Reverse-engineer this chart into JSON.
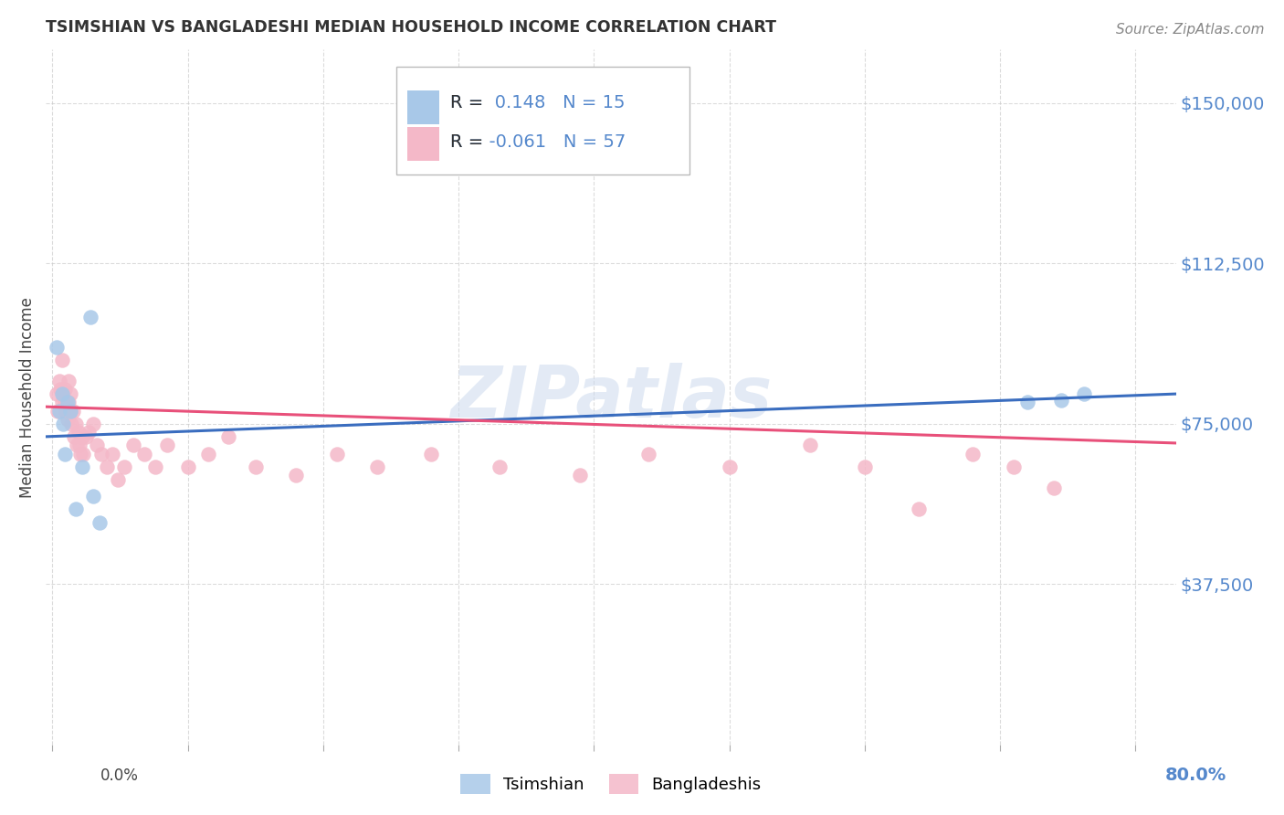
{
  "title": "TSIMSHIAN VS BANGLADESHI MEDIAN HOUSEHOLD INCOME CORRELATION CHART",
  "source": "Source: ZipAtlas.com",
  "ylabel": "Median Household Income",
  "yticks": [
    37500,
    75000,
    112500,
    150000
  ],
  "ytick_labels": [
    "$37,500",
    "$75,000",
    "$112,500",
    "$150,000"
  ],
  "ylim": [
    0,
    162500
  ],
  "xlim": [
    -0.005,
    0.83
  ],
  "watermark": "ZIPatlas",
  "blue_scatter_color": "#a8c8e8",
  "pink_scatter_color": "#f4b8c8",
  "blue_line_color": "#3a6dbf",
  "pink_line_color": "#e8507a",
  "ytick_color": "#5588cc",
  "title_color": "#333333",
  "source_color": "#888888",
  "background_color": "#ffffff",
  "grid_color": "#cccccc",
  "tsimshian_x": [
    0.003,
    0.005,
    0.007,
    0.008,
    0.009,
    0.011,
    0.013,
    0.017,
    0.022,
    0.028,
    0.03,
    0.035,
    0.72,
    0.745,
    0.762
  ],
  "tsimshian_y": [
    93000,
    78000,
    82000,
    75000,
    68000,
    80000,
    78000,
    55000,
    65000,
    100000,
    58000,
    52000,
    80000,
    80500,
    82000
  ],
  "bangladeshi_x": [
    0.003,
    0.004,
    0.005,
    0.006,
    0.007,
    0.007,
    0.008,
    0.009,
    0.009,
    0.01,
    0.01,
    0.011,
    0.012,
    0.012,
    0.013,
    0.013,
    0.014,
    0.015,
    0.016,
    0.017,
    0.018,
    0.019,
    0.02,
    0.021,
    0.022,
    0.023,
    0.025,
    0.027,
    0.03,
    0.033,
    0.036,
    0.04,
    0.044,
    0.048,
    0.053,
    0.06,
    0.068,
    0.076,
    0.085,
    0.1,
    0.115,
    0.13,
    0.15,
    0.18,
    0.21,
    0.24,
    0.28,
    0.33,
    0.39,
    0.44,
    0.5,
    0.56,
    0.6,
    0.64,
    0.68,
    0.71,
    0.74
  ],
  "bangladeshi_y": [
    82000,
    78000,
    85000,
    83000,
    80000,
    90000,
    82000,
    80000,
    83000,
    78000,
    80000,
    76000,
    80000,
    85000,
    78000,
    82000,
    75000,
    78000,
    72000,
    75000,
    70000,
    73000,
    70000,
    68000,
    72000,
    68000,
    72000,
    73000,
    75000,
    70000,
    68000,
    65000,
    68000,
    62000,
    65000,
    70000,
    68000,
    65000,
    70000,
    65000,
    68000,
    72000,
    65000,
    63000,
    68000,
    65000,
    68000,
    65000,
    63000,
    68000,
    65000,
    70000,
    65000,
    55000,
    68000,
    65000,
    60000
  ],
  "blue_line_x0": -0.005,
  "blue_line_x1": 0.83,
  "blue_line_y0": 72000,
  "blue_line_y1": 82000,
  "pink_line_x0": -0.005,
  "pink_line_x1": 0.83,
  "pink_line_y0": 79000,
  "pink_line_y1": 70500,
  "legend1_text": "R =  0.148   N = 15",
  "legend2_text": "R = -0.061   N = 57",
  "legend_text_color": "#333333",
  "legend_num_color": "#5588cc"
}
